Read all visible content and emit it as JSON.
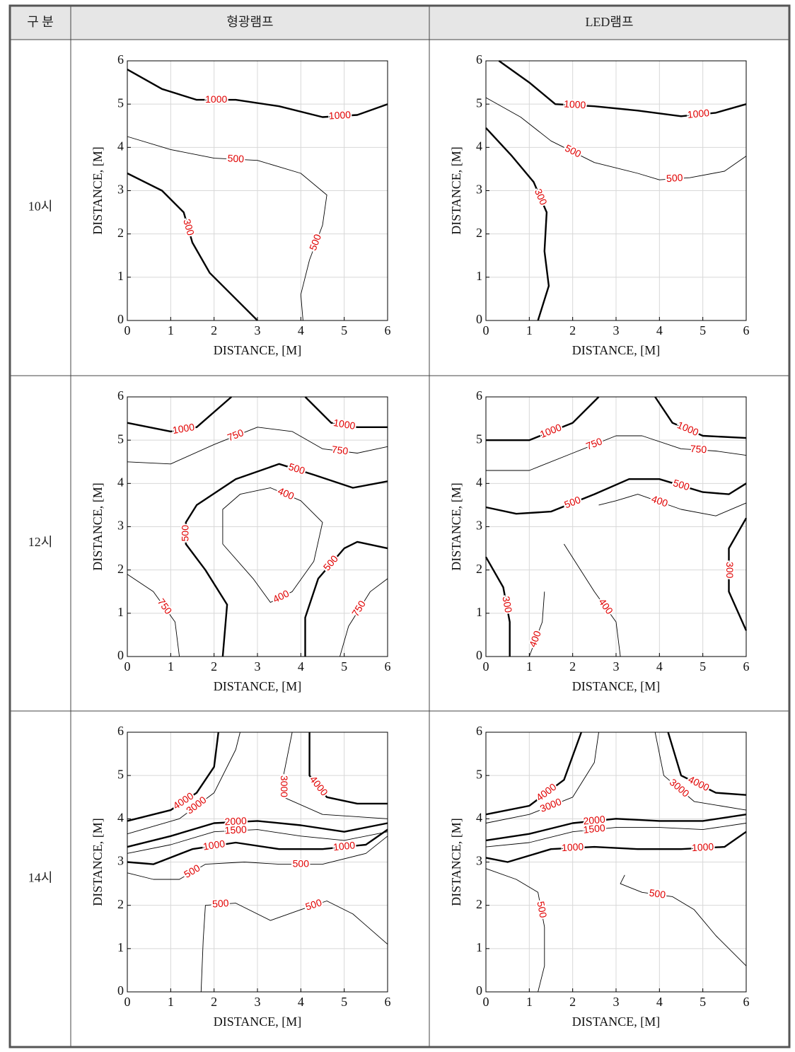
{
  "table": {
    "header": [
      "구 분",
      "형광램프",
      "LED램프"
    ],
    "rows": [
      "10시",
      "12시",
      "14시"
    ]
  },
  "chart_data": [
    {
      "type": "contour",
      "xlabel": "DISTANCE, [M]",
      "ylabel": "DISTANCE, [M]",
      "xlim": [
        0,
        6
      ],
      "ylim": [
        0,
        6
      ],
      "xticks": [
        0,
        1,
        2,
        3,
        4,
        5,
        6
      ],
      "yticks": [
        0,
        1,
        2,
        3,
        4,
        5,
        6
      ],
      "grid": true,
      "line_color": "#000000",
      "label_color": "#e00000",
      "contours": [
        {
          "level": 1000,
          "bold": true,
          "x": [
            0,
            0.8,
            1.6,
            2.5,
            3.5,
            4.5,
            5.3,
            6
          ],
          "y": [
            5.8,
            5.35,
            5.1,
            5.1,
            4.95,
            4.7,
            4.75,
            5.0
          ]
        },
        {
          "level": 500,
          "bold": false,
          "x": [
            0,
            1,
            2,
            3,
            4,
            4.6,
            4.5,
            4.2,
            4.0,
            4.05
          ],
          "y": [
            4.25,
            3.95,
            3.75,
            3.7,
            3.4,
            2.9,
            2.2,
            1.4,
            0.6,
            0
          ]
        },
        {
          "level": 300,
          "bold": true,
          "x": [
            0,
            0.8,
            1.3,
            1.5,
            1.9,
            2.4,
            3.0
          ],
          "y": [
            3.4,
            3.0,
            2.5,
            1.8,
            1.1,
            0.6,
            0
          ]
        }
      ]
    },
    {
      "type": "contour",
      "xlabel": "DISTANCE, [M]",
      "ylabel": "DISTANCE, [M]",
      "xlim": [
        0,
        6
      ],
      "ylim": [
        0,
        6
      ],
      "xticks": [
        0,
        1,
        2,
        3,
        4,
        5,
        6
      ],
      "yticks": [
        0,
        1,
        2,
        3,
        4,
        5,
        6
      ],
      "grid": true,
      "line_color": "#000000",
      "label_color": "#e00000",
      "contours": [
        {
          "level": 1000,
          "bold": true,
          "x": [
            0.3,
            1,
            1.6,
            2.5,
            3.5,
            4.5,
            5.3,
            6
          ],
          "y": [
            6,
            5.5,
            5.0,
            4.95,
            4.85,
            4.72,
            4.8,
            5.0
          ]
        },
        {
          "level": 500,
          "bold": false,
          "x": [
            0,
            0.8,
            1.5,
            2.5,
            3.5,
            4,
            4.7,
            5.5,
            6
          ],
          "y": [
            5.15,
            4.7,
            4.15,
            3.65,
            3.4,
            3.25,
            3.3,
            3.45,
            3.8
          ]
        },
        {
          "level": 300,
          "bold": true,
          "x": [
            0,
            0.6,
            1.1,
            1.4,
            1.35,
            1.45,
            1.2
          ],
          "y": [
            4.45,
            3.8,
            3.2,
            2.5,
            1.6,
            0.8,
            0
          ]
        }
      ]
    },
    {
      "type": "contour",
      "xlabel": "DISTANCE, [M]",
      "ylabel": "DISTANCE, [M]",
      "xlim": [
        0,
        6
      ],
      "ylim": [
        0,
        6
      ],
      "xticks": [
        0,
        1,
        2,
        3,
        4,
        5,
        6
      ],
      "yticks": [
        0,
        1,
        2,
        3,
        4,
        5,
        6
      ],
      "grid": true,
      "line_color": "#000000",
      "label_color": "#e00000",
      "contours": [
        {
          "level": 1000,
          "bold": true,
          "x": [
            0,
            1,
            1.6,
            2.4
          ],
          "y": [
            5.4,
            5.2,
            5.3,
            6
          ]
        },
        {
          "level": 1000,
          "bold": true,
          "x": [
            4.1,
            4.7,
            5.3,
            6
          ],
          "y": [
            6,
            5.4,
            5.3,
            5.3
          ]
        },
        {
          "level": 750,
          "bold": false,
          "x": [
            0,
            1,
            2,
            3,
            3.8,
            4.5,
            5.3,
            6
          ],
          "y": [
            4.5,
            4.45,
            4.9,
            5.3,
            5.2,
            4.8,
            4.7,
            4.85
          ]
        },
        {
          "level": 500,
          "bold": true,
          "x": [
            2.2,
            2.3,
            1.8,
            1.35,
            1.35,
            1.6,
            2.5,
            3.5,
            4.3,
            5.2,
            6
          ],
          "y": [
            0,
            1.2,
            2.0,
            2.6,
            3.1,
            3.5,
            4.1,
            4.45,
            4.2,
            3.9,
            4.05
          ]
        },
        {
          "level": 500,
          "bold": true,
          "x": [
            4.1,
            4.1,
            4.4,
            5,
            5.3,
            6
          ],
          "y": [
            0,
            0.9,
            1.8,
            2.5,
            2.65,
            2.5
          ]
        },
        {
          "level": 400,
          "bold": false,
          "x": [
            2.2,
            2.2,
            2.6,
            3.3,
            4,
            4.5,
            4.3,
            3.8,
            3.3,
            2.9,
            2.2
          ],
          "y": [
            2.6,
            3.4,
            3.75,
            3.9,
            3.6,
            3.1,
            2.2,
            1.5,
            1.25,
            1.8,
            2.6
          ]
        },
        {
          "level": 750,
          "bold": false,
          "x": [
            0,
            0.6,
            1.1,
            1.2
          ],
          "y": [
            1.9,
            1.5,
            0.8,
            0
          ]
        },
        {
          "level": 750,
          "bold": false,
          "x": [
            4.9,
            5.1,
            5.6,
            6
          ],
          "y": [
            0,
            0.7,
            1.5,
            1.8
          ]
        }
      ]
    },
    {
      "type": "contour",
      "xlabel": "DISTANCE, [M]",
      "ylabel": "DISTANCE, [M]",
      "xlim": [
        0,
        6
      ],
      "ylim": [
        0,
        6
      ],
      "xticks": [
        0,
        1,
        2,
        3,
        4,
        5,
        6
      ],
      "yticks": [
        0,
        1,
        2,
        3,
        4,
        5,
        6
      ],
      "grid": true,
      "line_color": "#000000",
      "label_color": "#e00000",
      "contours": [
        {
          "level": 1000,
          "bold": true,
          "x": [
            0,
            1,
            2,
            2.6
          ],
          "y": [
            5.0,
            5.0,
            5.4,
            6
          ]
        },
        {
          "level": 1000,
          "bold": true,
          "x": [
            3.9,
            4.3,
            5,
            6
          ],
          "y": [
            6,
            5.4,
            5.1,
            5.05
          ]
        },
        {
          "level": 750,
          "bold": false,
          "x": [
            0,
            1,
            2,
            3,
            3.6,
            4.5,
            5.3,
            6
          ],
          "y": [
            4.3,
            4.3,
            4.7,
            5.1,
            5.1,
            4.8,
            4.75,
            4.65
          ]
        },
        {
          "level": 500,
          "bold": true,
          "x": [
            0,
            0.7,
            1.5,
            2.5,
            3.3,
            4,
            5,
            5.6,
            6
          ],
          "y": [
            3.45,
            3.3,
            3.35,
            3.75,
            4.1,
            4.1,
            3.8,
            3.75,
            4.0
          ]
        },
        {
          "level": 400,
          "bold": false,
          "x": [
            2.6,
            3,
            3.5,
            4.5,
            5.3,
            6
          ],
          "y": [
            3.5,
            3.6,
            3.75,
            3.4,
            3.25,
            3.55
          ]
        },
        {
          "level": 400,
          "bold": false,
          "x": [
            1.0,
            1.3,
            1.35
          ],
          "y": [
            0,
            0.8,
            1.5
          ]
        },
        {
          "level": 400,
          "bold": false,
          "x": [
            1.8,
            2.5,
            3.0,
            3.1
          ],
          "y": [
            2.6,
            1.5,
            0.8,
            0
          ]
        },
        {
          "level": 300,
          "bold": true,
          "x": [
            0,
            0.4,
            0.55,
            0.55
          ],
          "y": [
            2.3,
            1.6,
            0.8,
            0
          ]
        },
        {
          "level": 300,
          "bold": true,
          "x": [
            6,
            5.6,
            5.6,
            6
          ],
          "y": [
            3.2,
            2.5,
            1.5,
            0.6
          ]
        }
      ]
    },
    {
      "type": "contour",
      "xlabel": "DISTANCE, [M]",
      "ylabel": "DISTANCE, [M]",
      "xlim": [
        0,
        6
      ],
      "ylim": [
        0,
        6
      ],
      "xticks": [
        0,
        1,
        2,
        3,
        4,
        5,
        6
      ],
      "yticks": [
        0,
        1,
        2,
        3,
        4,
        5,
        6
      ],
      "grid": true,
      "line_color": "#000000",
      "label_color": "#e00000",
      "contours": [
        {
          "level": 4000,
          "bold": true,
          "x": [
            0,
            1,
            1.6,
            2,
            2.1
          ],
          "y": [
            3.95,
            4.2,
            4.6,
            5.2,
            6
          ]
        },
        {
          "level": 4000,
          "bold": true,
          "x": [
            4.2,
            4.2,
            4.6,
            5.3,
            6
          ],
          "y": [
            6,
            5,
            4.5,
            4.35,
            4.35
          ]
        },
        {
          "level": 3000,
          "bold": false,
          "x": [
            0,
            1.2,
            2.0,
            2.5,
            2.6
          ],
          "y": [
            3.65,
            4.0,
            4.6,
            5.6,
            6
          ]
        },
        {
          "level": 3000,
          "bold": false,
          "x": [
            3.8,
            3.6,
            3.6,
            4.5,
            6
          ],
          "y": [
            6,
            5.0,
            4.5,
            4.1,
            4.0
          ]
        },
        {
          "level": 2000,
          "bold": true,
          "x": [
            0,
            1,
            2,
            3,
            4,
            5,
            6
          ],
          "y": [
            3.35,
            3.6,
            3.9,
            3.95,
            3.85,
            3.7,
            3.9
          ]
        },
        {
          "level": 1500,
          "bold": false,
          "x": [
            0,
            1,
            2,
            3,
            4,
            5,
            6
          ],
          "y": [
            3.2,
            3.4,
            3.7,
            3.75,
            3.6,
            3.5,
            3.7
          ]
        },
        {
          "level": 1000,
          "bold": true,
          "x": [
            0,
            0.6,
            1.5,
            2.5,
            3.5,
            4.5,
            5.5,
            6
          ],
          "y": [
            3.0,
            2.95,
            3.3,
            3.45,
            3.3,
            3.3,
            3.4,
            3.75
          ]
        },
        {
          "level": 500,
          "bold": false,
          "x": [
            0,
            0.6,
            1.2,
            1.8,
            2.7,
            3.5,
            4.5,
            5.5,
            6
          ],
          "y": [
            2.75,
            2.6,
            2.6,
            2.95,
            3.0,
            2.95,
            2.95,
            3.2,
            3.6
          ]
        },
        {
          "level": 500,
          "bold": false,
          "x": [
            1.7,
            1.75,
            1.8,
            2.5,
            3.3,
            4,
            4.6,
            5.2,
            6
          ],
          "y": [
            0,
            1.2,
            2.0,
            2.05,
            1.65,
            1.9,
            2.1,
            1.8,
            1.1
          ]
        }
      ]
    },
    {
      "type": "contour",
      "xlabel": "DISTANCE, [M]",
      "ylabel": "DISTANCE, [M]",
      "xlim": [
        0,
        6
      ],
      "ylim": [
        0,
        6
      ],
      "xticks": [
        0,
        1,
        2,
        3,
        4,
        5,
        6
      ],
      "yticks": [
        0,
        1,
        2,
        3,
        4,
        5,
        6
      ],
      "grid": true,
      "line_color": "#000000",
      "label_color": "#e00000",
      "contours": [
        {
          "level": 4000,
          "bold": true,
          "x": [
            0,
            1,
            1.8,
            2.2
          ],
          "y": [
            4.1,
            4.3,
            4.9,
            6
          ]
        },
        {
          "level": 4000,
          "bold": true,
          "x": [
            4.2,
            4.5,
            5.3,
            6
          ],
          "y": [
            6,
            5,
            4.6,
            4.55
          ]
        },
        {
          "level": 3000,
          "bold": false,
          "x": [
            0,
            1,
            2,
            2.5,
            2.6
          ],
          "y": [
            3.9,
            4.1,
            4.5,
            5.3,
            6
          ]
        },
        {
          "level": 3000,
          "bold": false,
          "x": [
            3.9,
            4.1,
            4.8,
            6
          ],
          "y": [
            6,
            5,
            4.4,
            4.2
          ]
        },
        {
          "level": 2000,
          "bold": true,
          "x": [
            0,
            1,
            2,
            3,
            4,
            5,
            6
          ],
          "y": [
            3.5,
            3.65,
            3.9,
            4.0,
            3.95,
            3.95,
            4.1
          ]
        },
        {
          "level": 1500,
          "bold": false,
          "x": [
            0,
            1,
            2,
            3,
            4,
            5,
            6
          ],
          "y": [
            3.35,
            3.45,
            3.7,
            3.8,
            3.8,
            3.75,
            3.9
          ]
        },
        {
          "level": 1000,
          "bold": true,
          "x": [
            0,
            0.5,
            1.5,
            2.5,
            3.5,
            4.5,
            5.5,
            6
          ],
          "y": [
            3.1,
            3.0,
            3.3,
            3.35,
            3.3,
            3.3,
            3.35,
            3.7
          ]
        },
        {
          "level": 500,
          "bold": false,
          "x": [
            0,
            0.7,
            1.2,
            1.35,
            1.35,
            1.2
          ],
          "y": [
            2.85,
            2.6,
            2.3,
            1.5,
            0.6,
            0
          ]
        },
        {
          "level": 500,
          "bold": false,
          "x": [
            3.2,
            3.1,
            3.6,
            4.3,
            4.8,
            5.3,
            6
          ],
          "y": [
            2.7,
            2.5,
            2.3,
            2.2,
            1.9,
            1.3,
            0.6
          ]
        }
      ]
    }
  ]
}
